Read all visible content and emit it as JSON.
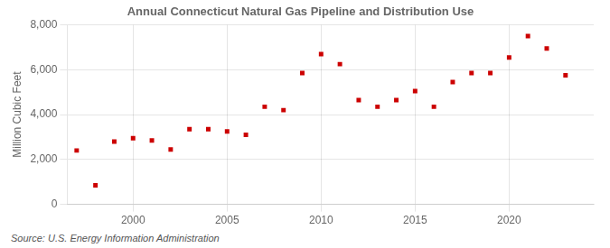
{
  "chart_data": {
    "type": "scatter",
    "title": "Annual Connecticut Natural Gas Pipeline and Distribution Use",
    "ylabel": "Million Cubic Feet",
    "source": "Source: U.S. Energy Information Administration",
    "x": [
      1997,
      1998,
      1999,
      2000,
      2001,
      2002,
      2003,
      2004,
      2005,
      2006,
      2007,
      2008,
      2009,
      2010,
      2011,
      2012,
      2013,
      2014,
      2015,
      2016,
      2017,
      2018,
      2019,
      2020,
      2021,
      2022,
      2023
    ],
    "values": [
      2400,
      850,
      2800,
      2950,
      2850,
      2450,
      3350,
      3350,
      3250,
      3100,
      4350,
      4200,
      5850,
      6700,
      6250,
      4650,
      4350,
      4650,
      5050,
      4350,
      5450,
      5850,
      5850,
      6550,
      7500,
      6950,
      5750
    ],
    "color": "#cc0000",
    "marker": "square",
    "xlim": [
      1996.5,
      2024.5
    ],
    "xticks": [
      2000,
      2005,
      2010,
      2015,
      2020
    ],
    "ylim": [
      0,
      8000
    ],
    "yticks": [
      0,
      {
        "value": 2000,
        "label": "2,000"
      },
      {
        "value": 4000,
        "label": "4,000"
      },
      {
        "value": 6000,
        "label": "6,000"
      },
      {
        "value": 8000,
        "label": "8,000"
      }
    ],
    "grid": true
  }
}
